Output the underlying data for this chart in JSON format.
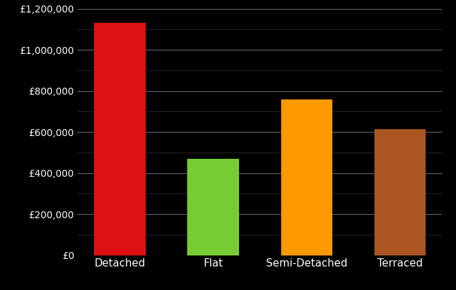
{
  "categories": [
    "Detached",
    "Flat",
    "Semi-Detached",
    "Terraced"
  ],
  "values": [
    1130000,
    470000,
    760000,
    615000
  ],
  "bar_colors": [
    "#dd1111",
    "#77cc33",
    "#ff9900",
    "#aa5522"
  ],
  "background_color": "#000000",
  "text_color": "#ffffff",
  "grid_color": "#666666",
  "minor_grid_color": "#333333",
  "ylim": [
    0,
    1200000
  ],
  "yticks_major": [
    0,
    200000,
    400000,
    600000,
    800000,
    1000000,
    1200000
  ],
  "tick_fontsize": 10,
  "label_fontsize": 11,
  "bar_width": 0.55
}
